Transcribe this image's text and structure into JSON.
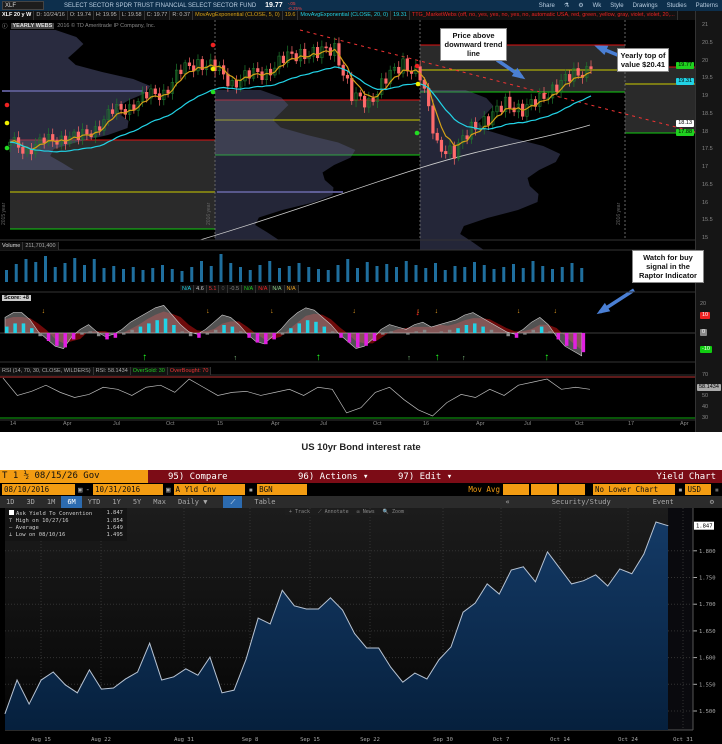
{
  "tos": {
    "symbol": "XLF",
    "title": "SELECT SECTOR SPDR TRUST FINANCIAL SELECT SECTOR FUND",
    "last": "19.77",
    "change": "-.05",
    "change_pct": "-0.25%",
    "toolbar": [
      "Share",
      "Wk",
      "Style",
      "Drawings",
      "Studies",
      "Patterns"
    ],
    "status": [
      "XLF 20 y W",
      "D: 10/24/16",
      "O: 19.74",
      "H: 19.95",
      "L: 19.58",
      "C: 19.77",
      "R: 0.37",
      "MovAvgExponential (CLOSE, 5, 0)",
      "19.6",
      "MovAvgExponential (CLOSE, 20, 0)",
      "19.31",
      "TTG_MarketWebs (off, no, yes, yes, no, yes, no, automatic USA, red, green, yellow, gray, violet, violet, 20,..."
    ],
    "watermark_label": "YEARLY WEBS",
    "copyright": "2016 © TD Ameritrade IP Company, Inc.",
    "year_labels": [
      "2015 year",
      "2016 year",
      "2016 year"
    ],
    "price_axis": [
      "21",
      "20.5",
      "20",
      "19.5",
      "19",
      "18.5",
      "18",
      "17.5",
      "17",
      "16.5",
      "16",
      "15.5",
      "15"
    ],
    "price_tags": [
      {
        "v": "19.77",
        "color": "#1fd11f"
      },
      {
        "v": "19.31",
        "color": "#22d3e6"
      },
      {
        "v": "18.13",
        "color": "#ffffff"
      },
      {
        "v": "17.88",
        "color": "#1fd11f"
      }
    ],
    "volume": {
      "label": "Volume",
      "value": "211,701,400",
      "values_m": [
        120,
        180,
        230,
        200,
        260,
        150,
        190,
        240,
        170,
        230,
        140,
        160,
        130,
        150,
        120,
        140,
        170,
        130,
        110,
        150,
        210,
        160,
        280,
        190,
        150,
        120,
        170,
        210,
        140,
        160,
        190,
        150,
        130,
        120,
        170,
        230,
        140,
        200,
        160,
        180,
        150,
        210,
        170,
        140,
        190,
        120,
        160,
        150,
        200,
        170,
        130,
        150,
        180,
        140,
        210,
        160,
        130,
        150,
        190,
        140
      ]
    },
    "study_vals": [
      {
        "t": "N/A",
        "c": "#22d3e6"
      },
      {
        "t": "4.6",
        "c": "#ccc"
      },
      {
        "t": "5.1",
        "c": "#e33"
      },
      {
        "t": "0",
        "c": "#555"
      },
      {
        "t": "-0.5",
        "c": "#888"
      },
      {
        "t": "N/A",
        "c": "#2c2"
      },
      {
        "t": "N/A",
        "c": "#e22"
      },
      {
        "t": "N/A",
        "c": "#8c8"
      },
      {
        "t": "N/A",
        "c": "#e9a020"
      }
    ],
    "raptor": {
      "score": "Score: +8",
      "axis": [
        "20",
        "10",
        "0",
        "-10"
      ],
      "histogram": [
        4,
        6,
        6,
        3,
        -2,
        -5,
        -8,
        -9,
        -4,
        -1,
        1,
        -2,
        -4,
        -3,
        -1,
        2,
        4,
        6,
        8,
        9,
        5,
        1,
        -2,
        -3,
        -1,
        2,
        5,
        4,
        1,
        -3,
        -6,
        -7,
        -4,
        -1,
        3,
        6,
        8,
        7,
        4,
        1,
        -3,
        -6,
        -9,
        -8,
        -5,
        -1,
        1,
        0,
        -1,
        1,
        2,
        0,
        1,
        2,
        3,
        5,
        6,
        4,
        2,
        0,
        -2,
        -3,
        -1,
        2,
        4,
        1,
        -4,
        -8,
        -10,
        -12
      ],
      "sell_signals": [
        4,
        22,
        29,
        38,
        45,
        47,
        56,
        60
      ],
      "buy_signals": [
        15,
        25,
        34,
        44,
        47,
        50,
        59
      ]
    },
    "rsi": {
      "header": "RSI (14, 70, 30, CLOSE, WILDERS)",
      "value_label": "RSI: 58.1434",
      "oversold": "OverSold: 30",
      "overbought": "OverBought: 70",
      "value": "58.1434",
      "axis": [
        "70",
        "50",
        "40",
        "30"
      ],
      "values": [
        69,
        52,
        56,
        62,
        55,
        50,
        53,
        60,
        58,
        52,
        60,
        62,
        55,
        68,
        60,
        52,
        55,
        56,
        52,
        55,
        58,
        52,
        60,
        58,
        35,
        40,
        55,
        60,
        48,
        38,
        32,
        45,
        53,
        50,
        58,
        52,
        62,
        65,
        68,
        58,
        60,
        58
      ]
    },
    "x_axis": [
      "14",
      "Apr",
      "Jul",
      "Oct",
      "15",
      "Apr",
      "Jul",
      "Oct",
      "16",
      "Apr",
      "Jul",
      "Oct",
      "17",
      "Apr"
    ],
    "annotations": {
      "trend": "Price above downward trend line",
      "top": "Yearly top of value $20.41",
      "raptor": "Watch for buy signal in the Raptor Indicator"
    },
    "colors": {
      "bull": "#1f7a2e",
      "bear": "#ff6b6b",
      "ema_fast": "#d4a017",
      "ema_slow": "#22d3e6",
      "sma": "#cfcfcf"
    }
  },
  "chart_data": [
    {
      "type": "candlestick",
      "title": "XLF 20 y W",
      "period": "weekly",
      "y_unit": "USD",
      "ylim": [
        15,
        21
      ],
      "monthly_close_approx": [
        17.7,
        17.5,
        17.7,
        17.85,
        17.8,
        18.1,
        18.55,
        18.7,
        19.0,
        19.1,
        19.7,
        19.95,
        19.8,
        19.35,
        19.6,
        19.65,
        20.05,
        20.2,
        20.2,
        20.35,
        19.0,
        18.8,
        19.5,
        19.9,
        19.6,
        17.6,
        17.4,
        18.1,
        18.35,
        18.8,
        18.6,
        18.9,
        19.3,
        19.6,
        19.77
      ],
      "x_ticks": [
        "14",
        "Apr",
        "Jul",
        "Oct",
        "15",
        "Apr",
        "Jul",
        "Oct",
        "16",
        "Apr",
        "Jul",
        "Oct",
        "17",
        "Apr"
      ]
    },
    {
      "type": "area",
      "title": "Yield Chart",
      "series": [
        {
          "name": "Ask Yield To Convention",
          "values": [
            1.495,
            1.558,
            1.513,
            1.558,
            1.573,
            1.549,
            1.534,
            1.577,
            1.541,
            1.543,
            1.56,
            1.573,
            1.627,
            1.558,
            1.564,
            1.579,
            1.567,
            1.601,
            1.534,
            1.539,
            1.597,
            1.674,
            1.663,
            1.726,
            1.697,
            1.691,
            1.691,
            1.712,
            1.689,
            1.645,
            1.618,
            1.618,
            1.582,
            1.554,
            1.571,
            1.56,
            1.596,
            1.62,
            1.685,
            1.702,
            1.738,
            1.719,
            1.764,
            1.77,
            1.742,
            1.798,
            1.768,
            1.738,
            1.744,
            1.755,
            1.734,
            1.766,
            1.757,
            1.794,
            1.854,
            1.847
          ]
        }
      ],
      "x_ticks": [
        "Aug 15",
        "Aug 22",
        "Aug 31",
        "Sep 8",
        "Sep 15",
        "Sep 22",
        "Sep 30",
        "Oct 7",
        "Oct 14",
        "Oct 24",
        "Oct 31"
      ],
      "y_ticks": [
        "1.500",
        "1.550",
        "1.600",
        "1.650",
        "1.700",
        "1.750",
        "1.800"
      ],
      "ylim": [
        1.47,
        1.87
      ],
      "last_label": "1.847",
      "grid": true
    }
  ],
  "caption": "US 10yr Bond interest rate",
  "bb": {
    "ticker": "T 1 ½ 08/15/26 Gov",
    "compare": "95) Compare",
    "actions": "96) Actions ▾",
    "edit": "97) Edit ▾",
    "title": "Yield Chart",
    "start": "08/10/2016",
    "end": "10/31/2016",
    "field": "A Yld Cnv",
    "source": "BGN",
    "mov_avg": "Mov Avg",
    "lower": "No Lower Chart",
    "ccy": "USD",
    "periods": [
      "1D",
      "3D",
      "1M",
      "6M",
      "YTD",
      "1Y",
      "5Y",
      "Max",
      "Daily ▼"
    ],
    "table": "Table",
    "collapse": "«",
    "security": "Security/Study",
    "event": "Event",
    "tools": [
      "+ Track",
      "⟋ Annotate",
      "✉ News",
      "🔍 Zoom"
    ],
    "legend": [
      {
        "l": "Ask Yield To Convention",
        "v": "1.847"
      },
      {
        "l": "High on 10/27/16",
        "v": "1.854"
      },
      {
        "l": "Average",
        "v": "1.649"
      },
      {
        "l": "Low on 08/10/16",
        "v": "1.495"
      }
    ],
    "accent": "#f39c12",
    "header": "#7c0c16",
    "fill": "#0e2a4d"
  }
}
